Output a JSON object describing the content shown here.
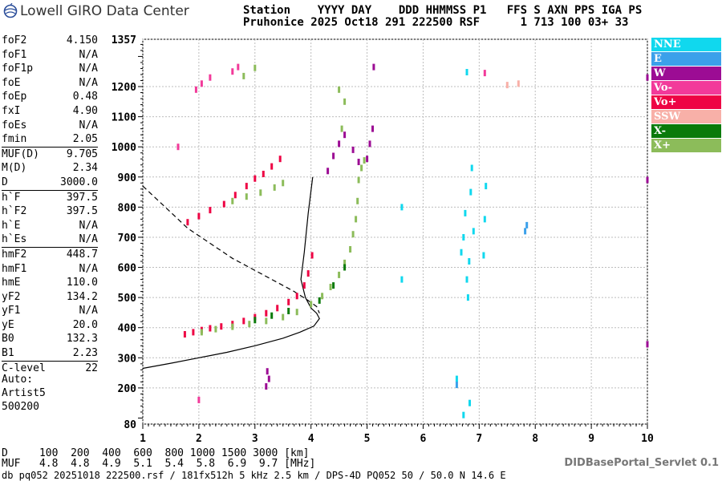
{
  "header": {
    "logo_text": "Lowell GIRO Data Center",
    "line1": "Station    YYYY DAY    DDD HHMMSS P1   FFS S AXN PPS IGA PS",
    "line2": "Pruhonice 2025 Oct18 291 222500 RSF      1 713 100 03+ 33"
  },
  "params": [
    {
      "name": "foF2",
      "value": "4.150"
    },
    {
      "name": "foF1",
      "value": "N/A"
    },
    {
      "name": "foF1p",
      "value": "N/A"
    },
    {
      "name": "foE",
      "value": "N/A"
    },
    {
      "name": "foEp",
      "value": "0.48"
    },
    {
      "name": "fxI",
      "value": "4.90"
    },
    {
      "name": "foEs",
      "value": "N/A"
    },
    {
      "name": "fmin",
      "value": "2.05"
    },
    {
      "name": "MUF(D)",
      "value": "9.705"
    },
    {
      "name": "M(D)",
      "value": "2.34"
    },
    {
      "name": "D",
      "value": "3000.0"
    },
    {
      "name": "h`F",
      "value": "397.5"
    },
    {
      "name": "h`F2",
      "value": "397.5"
    },
    {
      "name": "h`E",
      "value": "N/A"
    },
    {
      "name": "h`Es",
      "value": "N/A"
    },
    {
      "name": "hmF2",
      "value": "448.7"
    },
    {
      "name": "hmF1",
      "value": "N/A"
    },
    {
      "name": "hmE",
      "value": "110.0"
    },
    {
      "name": "yF2",
      "value": "134.2"
    },
    {
      "name": "yF1",
      "value": "N/A"
    },
    {
      "name": "yE",
      "value": "20.0"
    },
    {
      "name": "B0",
      "value": "132.3"
    },
    {
      "name": "B1",
      "value": "2.23"
    },
    {
      "name": "C-level",
      "value": "22"
    }
  ],
  "auto": {
    "label": "Auto:",
    "artist": "Artist5",
    "code": "500200"
  },
  "muf_table": {
    "d_line": "D     100  200  400  600  800 1000 1500 3000 [km]",
    "muf_line": "MUF   4.8  4.8  4.9  5.1  5.4  5.8  6.9  9.7 [MHz]"
  },
  "footer": {
    "file_line": "db pq052 20251018 222500.rsf / 181fx512h 5 kHz 2.5 km / DPS-4D PQ052 50 / 50.0 N 14.6 E",
    "servlet": "DIDBasePortal_Servlet 0.1"
  },
  "legend": [
    {
      "label": "NNE",
      "color": "#10d8ee"
    },
    {
      "label": "E",
      "color": "#3ba0ea"
    },
    {
      "label": "W",
      "color": "#9c0c94"
    },
    {
      "label": "Vo-",
      "color": "#f23a9a"
    },
    {
      "label": "Vo+",
      "color": "#ee0444"
    },
    {
      "label": "SSW",
      "color": "#f8b0a8"
    },
    {
      "label": "X-",
      "color": "#0a7a0a"
    },
    {
      "label": "X+",
      "color": "#8cbc5a"
    }
  ],
  "chart_data": {
    "type": "scatter",
    "xlabel": "",
    "ylabel": "",
    "xlim": [
      1,
      10
    ],
    "ylim": [
      80,
      1357
    ],
    "x_ticks": [
      1,
      2,
      3,
      4,
      5,
      6,
      7,
      8,
      9,
      10
    ],
    "y_ticks": [
      80,
      200,
      300,
      400,
      500,
      600,
      700,
      800,
      900,
      1000,
      1100,
      1200,
      1357
    ],
    "grid": true,
    "legend_position": "right",
    "series": [
      {
        "name": "Vo+",
        "color": "#ee0444",
        "points": [
          [
            1.75,
            378
          ],
          [
            1.9,
            385
          ],
          [
            2.05,
            392
          ],
          [
            2.2,
            398
          ],
          [
            2.4,
            404
          ],
          [
            2.6,
            412
          ],
          [
            2.8,
            422
          ],
          [
            3.0,
            435
          ],
          [
            3.2,
            448
          ],
          [
            3.4,
            465
          ],
          [
            3.6,
            485
          ],
          [
            3.75,
            505
          ],
          [
            3.88,
            540
          ],
          [
            3.95,
            580
          ],
          [
            4.02,
            640
          ],
          [
            1.8,
            750
          ],
          [
            2.0,
            770
          ],
          [
            2.2,
            790
          ],
          [
            2.45,
            810
          ],
          [
            2.65,
            840
          ],
          [
            2.85,
            870
          ],
          [
            3.0,
            895
          ],
          [
            3.15,
            910
          ],
          [
            3.3,
            935
          ],
          [
            3.45,
            960
          ]
        ]
      },
      {
        "name": "X+",
        "color": "#8cbc5a",
        "points": [
          [
            2.05,
            385
          ],
          [
            2.3,
            395
          ],
          [
            2.6,
            403
          ],
          [
            2.9,
            412
          ],
          [
            3.2,
            422
          ],
          [
            3.5,
            435
          ],
          [
            3.75,
            452
          ],
          [
            4.0,
            478
          ],
          [
            4.2,
            505
          ],
          [
            4.35,
            535
          ],
          [
            4.5,
            575
          ],
          [
            4.6,
            615
          ],
          [
            4.7,
            660
          ],
          [
            4.75,
            710
          ],
          [
            4.8,
            760
          ],
          [
            4.83,
            820
          ],
          [
            4.85,
            890
          ],
          [
            4.9,
            930
          ],
          [
            4.95,
            955
          ],
          [
            2.6,
            820
          ],
          [
            2.85,
            835
          ],
          [
            3.1,
            848
          ],
          [
            3.35,
            865
          ],
          [
            3.5,
            880
          ],
          [
            4.55,
            1060
          ],
          [
            4.6,
            1150
          ],
          [
            4.5,
            1190
          ],
          [
            2.8,
            1235
          ],
          [
            3.0,
            1262
          ]
        ]
      },
      {
        "name": "W",
        "color": "#9c0c94",
        "points": [
          [
            3.2,
            205
          ],
          [
            3.25,
            230
          ],
          [
            3.22,
            255
          ],
          [
            4.3,
            920
          ],
          [
            4.4,
            970
          ],
          [
            4.5,
            1010
          ],
          [
            4.6,
            1040
          ],
          [
            4.75,
            990
          ],
          [
            4.85,
            950
          ],
          [
            5.0,
            960
          ],
          [
            5.05,
            1010
          ],
          [
            5.1,
            1060
          ],
          [
            10.0,
            345
          ],
          [
            10.0,
            890
          ],
          [
            10.0,
            1230
          ],
          [
            5.12,
            1265
          ]
        ]
      },
      {
        "name": "NNE",
        "color": "#10d8ee",
        "points": [
          [
            6.68,
            650
          ],
          [
            6.72,
            700
          ],
          [
            6.75,
            780
          ],
          [
            6.78,
            560
          ],
          [
            6.8,
            500
          ],
          [
            6.82,
            620
          ],
          [
            6.85,
            850
          ],
          [
            6.87,
            930
          ],
          [
            6.9,
            720
          ],
          [
            7.08,
            640
          ],
          [
            7.1,
            760
          ],
          [
            7.12,
            870
          ],
          [
            6.78,
            1248
          ],
          [
            5.62,
            800
          ],
          [
            5.62,
            560
          ],
          [
            6.6,
            230
          ],
          [
            6.72,
            110
          ],
          [
            6.83,
            150
          ]
        ]
      },
      {
        "name": "E",
        "color": "#3ba0ea",
        "points": [
          [
            7.82,
            720
          ],
          [
            7.85,
            740
          ],
          [
            6.6,
            210
          ]
        ]
      },
      {
        "name": "Vo-",
        "color": "#f23a9a",
        "points": [
          [
            1.95,
            1190
          ],
          [
            2.05,
            1210
          ],
          [
            2.2,
            1230
          ],
          [
            2.6,
            1250
          ],
          [
            2.7,
            1265
          ],
          [
            7.1,
            1245
          ],
          [
            1.63,
            1000
          ],
          [
            2.0,
            160
          ]
        ]
      },
      {
        "name": "X-",
        "color": "#0a7a0a",
        "points": [
          [
            3.0,
            425
          ],
          [
            3.3,
            440
          ],
          [
            3.6,
            455
          ],
          [
            4.15,
            490
          ],
          [
            4.4,
            540
          ],
          [
            4.6,
            600
          ]
        ]
      },
      {
        "name": "SSW",
        "color": "#f8b0a8",
        "points": [
          [
            7.5,
            1205
          ],
          [
            7.7,
            1210
          ]
        ]
      }
    ],
    "profile_solid": [
      [
        1.0,
        265
      ],
      [
        1.5,
        282
      ],
      [
        2.0,
        300
      ],
      [
        2.5,
        318
      ],
      [
        3.0,
        340
      ],
      [
        3.5,
        365
      ],
      [
        3.8,
        385
      ],
      [
        4.05,
        405
      ],
      [
        4.15,
        430
      ],
      [
        4.1,
        448
      ],
      [
        4.0,
        465
      ],
      [
        3.9,
        500
      ],
      [
        3.82,
        560
      ],
      [
        3.88,
        650
      ],
      [
        3.95,
        780
      ],
      [
        4.03,
        900
      ]
    ],
    "profile_dashed": [
      [
        1.0,
        870
      ],
      [
        1.4,
        800
      ],
      [
        1.8,
        730
      ],
      [
        2.2,
        680
      ],
      [
        2.6,
        630
      ],
      [
        3.0,
        590
      ],
      [
        3.4,
        550
      ],
      [
        3.7,
        520
      ],
      [
        3.95,
        490
      ],
      [
        4.1,
        470
      ],
      [
        4.15,
        448
      ]
    ]
  }
}
